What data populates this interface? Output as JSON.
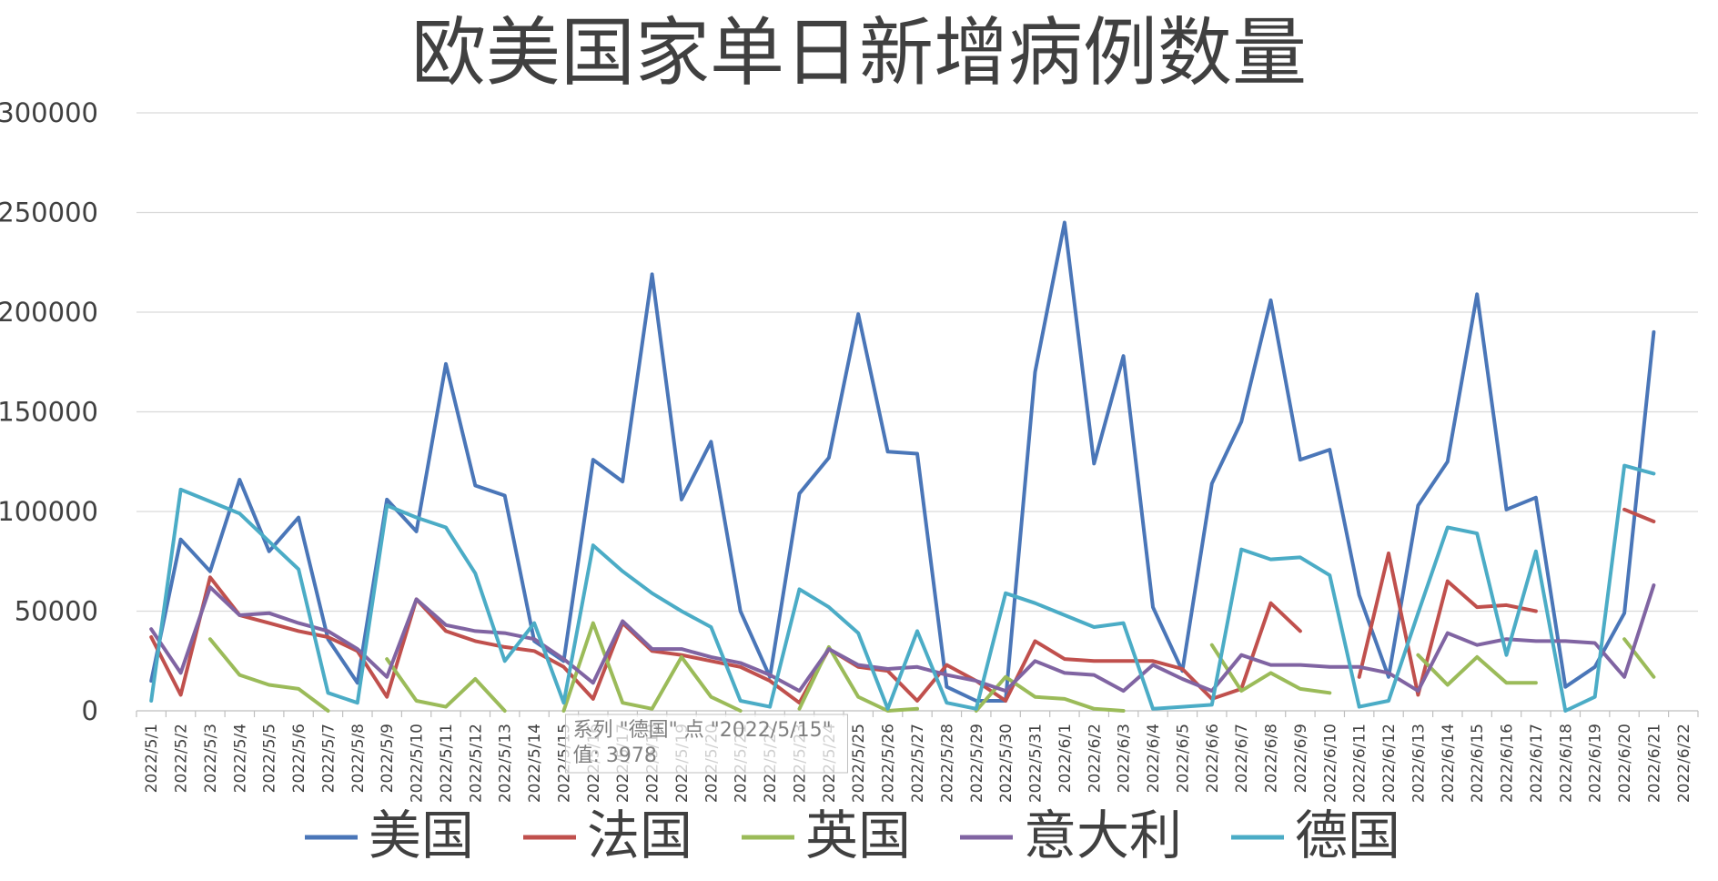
{
  "chart_data": {
    "type": "line",
    "title": "欧美国家单日新增病例数量",
    "xlabel": "",
    "ylabel": "",
    "ylim": [
      0,
      300000
    ],
    "yticks": [
      0,
      50000,
      100000,
      150000,
      200000,
      250000,
      300000
    ],
    "ytick_labels": [
      "0",
      "50000",
      "100000",
      "150000",
      "200000",
      "250000",
      "300000"
    ],
    "grid": "horizontal",
    "legend_position": "bottom",
    "categories": [
      "2022/5/1",
      "2022/5/2",
      "2022/5/3",
      "2022/5/4",
      "2022/5/5",
      "2022/5/6",
      "2022/5/7",
      "2022/5/8",
      "2022/5/9",
      "2022/5/10",
      "2022/5/11",
      "2022/5/12",
      "2022/5/13",
      "2022/5/14",
      "2022/5/15",
      "2022/5/16",
      "2022/5/17",
      "2022/5/18",
      "2022/5/19",
      "2022/5/20",
      "2022/5/21",
      "2022/5/22",
      "2022/5/23",
      "2022/5/24",
      "2022/5/25",
      "2022/5/26",
      "2022/5/27",
      "2022/5/28",
      "2022/5/29",
      "2022/5/30",
      "2022/5/31",
      "2022/6/1",
      "2022/6/2",
      "2022/6/3",
      "2022/6/4",
      "2022/6/5",
      "2022/6/6",
      "2022/6/7",
      "2022/6/8",
      "2022/6/9",
      "2022/6/10",
      "2022/6/11",
      "2022/6/12",
      "2022/6/13",
      "2022/6/14",
      "2022/6/15",
      "2022/6/16",
      "2022/6/17",
      "2022/6/18",
      "2022/6/19",
      "2022/6/20",
      "2022/6/21",
      "2022/6/22"
    ],
    "series": [
      {
        "name": "美国",
        "color": "#4a76b8",
        "values": [
          15000,
          86000,
          70000,
          116000,
          80000,
          97000,
          36000,
          14000,
          106000,
          90000,
          174000,
          113000,
          108000,
          35000,
          25000,
          126000,
          115000,
          219000,
          106000,
          135000,
          50000,
          17000,
          109000,
          127000,
          199000,
          130000,
          129000,
          12000,
          5000,
          5000,
          170000,
          245000,
          124000,
          178000,
          52000,
          20000,
          114000,
          145000,
          206000,
          126000,
          131000,
          58000,
          17000,
          103000,
          125000,
          209000,
          101000,
          107000,
          12000,
          22000,
          49000,
          190000,
          null
        ]
      },
      {
        "name": "法国",
        "color": "#c0504d",
        "values": [
          37000,
          8000,
          67000,
          48000,
          44000,
          40000,
          37000,
          30000,
          7000,
          56000,
          40000,
          35000,
          32000,
          30000,
          22000,
          6000,
          44000,
          30000,
          28000,
          25000,
          22000,
          15000,
          4000,
          31000,
          22000,
          20000,
          5000,
          23000,
          15000,
          5000,
          35000,
          26000,
          25000,
          25000,
          25000,
          21000,
          6000,
          11000,
          54000,
          40000,
          null,
          17000,
          79000,
          8000,
          65000,
          52000,
          53000,
          50000,
          null,
          null,
          101000,
          95000,
          null
        ]
      },
      {
        "name": "英国",
        "color": "#9bbb59",
        "values": [
          null,
          null,
          36000,
          18000,
          13000,
          11000,
          0,
          null,
          26000,
          5000,
          2000,
          16000,
          0,
          null,
          0,
          44000,
          4000,
          1000,
          27000,
          7000,
          0,
          null,
          1000,
          32000,
          7000,
          0,
          1000,
          null,
          0,
          17000,
          7000,
          6000,
          1000,
          0,
          null,
          null,
          33000,
          10000,
          19000,
          11000,
          9000,
          null,
          null,
          28000,
          13000,
          27000,
          14000,
          14000,
          null,
          null,
          36000,
          17000,
          null
        ]
      },
      {
        "name": "意大利",
        "color": "#8064a2",
        "values": [
          41000,
          19000,
          62000,
          48000,
          49000,
          44000,
          40000,
          31000,
          17000,
          56000,
          43000,
          40000,
          39000,
          36000,
          26000,
          14000,
          45000,
          31000,
          31000,
          27000,
          24000,
          18000,
          10000,
          31000,
          23000,
          21000,
          22000,
          18000,
          15000,
          10000,
          25000,
          19000,
          18000,
          10000,
          23000,
          16000,
          10000,
          28000,
          23000,
          23000,
          22000,
          22000,
          19000,
          10000,
          39000,
          33000,
          36000,
          35000,
          35000,
          34000,
          17000,
          63000,
          null
        ]
      },
      {
        "name": "德国",
        "color": "#4bacc6",
        "values": [
          5000,
          111000,
          105000,
          99000,
          85000,
          71000,
          9000,
          4000,
          103000,
          97000,
          92000,
          69000,
          25000,
          44000,
          4000,
          83000,
          70000,
          59000,
          50000,
          42000,
          5000,
          2000,
          61000,
          52000,
          39000,
          1000,
          40000,
          4000,
          1000,
          59000,
          54000,
          48000,
          42000,
          44000,
          1000,
          2000,
          3000,
          81000,
          76000,
          77000,
          68000,
          2000,
          5000,
          49000,
          92000,
          89000,
          28000,
          80000,
          0,
          7000,
          123000,
          119000,
          null
        ]
      }
    ],
    "tooltip_lines": [
      "系列 \"德国\" 点 \"2022/5/15\"",
      "值: 3978"
    ]
  }
}
